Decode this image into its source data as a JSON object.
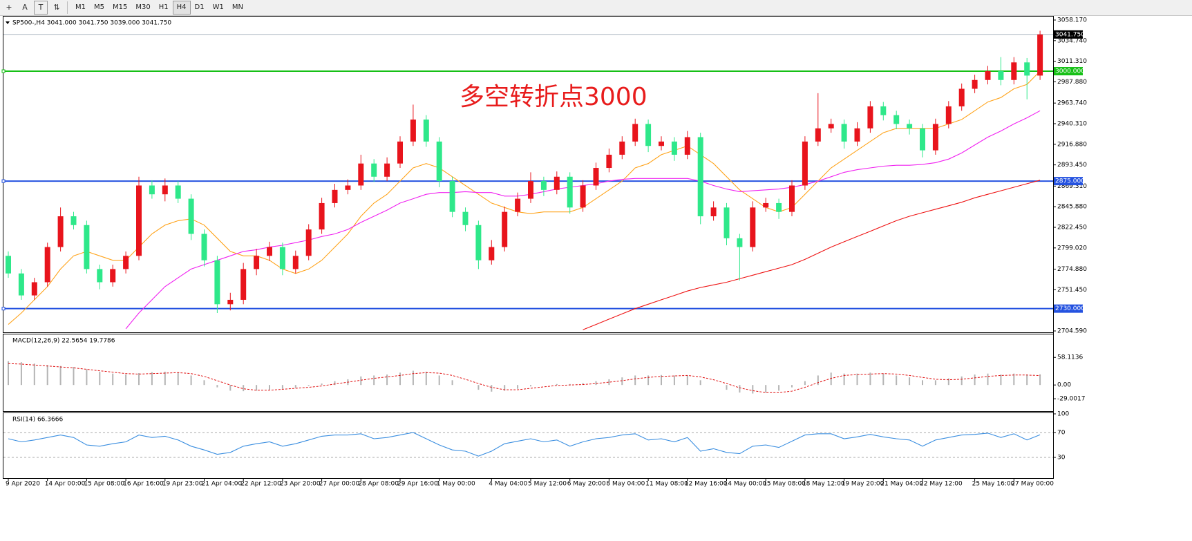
{
  "toolbar": {
    "timeframes": [
      "M1",
      "M5",
      "M15",
      "M30",
      "H1",
      "H4",
      "D1",
      "W1",
      "MN"
    ]
  },
  "chart_data": [
    {
      "type": "candlestick",
      "title": "SP500-,H4  3041.000 3041.750 3039.000 3041.750",
      "annotation": "多空转折点3000",
      "up_color": "#e8141c",
      "down_color": "#2ee88a",
      "categories": [
        "9 Apr 2020",
        null,
        null,
        "14 Apr 00:00",
        null,
        null,
        "15 Apr 08:00",
        null,
        null,
        "16 Apr 16:00",
        null,
        null,
        "19 Apr 23:00",
        null,
        null,
        "21 Apr 04:00",
        null,
        null,
        "22 Apr 12:00",
        null,
        null,
        "23 Apr 20:00",
        null,
        null,
        "27 Apr 00:00",
        null,
        null,
        "28 Apr 08:00",
        null,
        null,
        "29 Apr 16:00",
        null,
        null,
        "1 May 00:00",
        null,
        null,
        null,
        "4 May 04:00",
        null,
        null,
        "5 May 12:00",
        null,
        null,
        "6 May 20:00",
        null,
        null,
        "8 May 04:00",
        null,
        null,
        "11 May 08:00",
        null,
        null,
        "12 May 16:00",
        null,
        null,
        "14 May 00:00",
        null,
        null,
        "15 May 08:00",
        null,
        null,
        "18 May 12:00",
        null,
        null,
        "19 May 20:00",
        null,
        null,
        "21 May 04:00",
        null,
        null,
        "22 May 12:00",
        null,
        null,
        null,
        "25 May 16:00",
        null,
        null,
        "27 May 00:00",
        null,
        null
      ],
      "candles": [
        [
          2790,
          2795,
          2765,
          2770
        ],
        [
          2770,
          2775,
          2740,
          2745
        ],
        [
          2745,
          2765,
          2740,
          2760
        ],
        [
          2760,
          2805,
          2755,
          2800
        ],
        [
          2800,
          2845,
          2795,
          2835
        ],
        [
          2835,
          2840,
          2820,
          2825
        ],
        [
          2825,
          2830,
          2770,
          2775
        ],
        [
          2775,
          2780,
          2752,
          2760
        ],
        [
          2760,
          2780,
          2755,
          2775
        ],
        [
          2775,
          2795,
          2770,
          2790
        ],
        [
          2790,
          2880,
          2785,
          2870
        ],
        [
          2870,
          2876,
          2855,
          2860
        ],
        [
          2860,
          2878,
          2852,
          2870
        ],
        [
          2870,
          2875,
          2850,
          2855
        ],
        [
          2855,
          2860,
          2808,
          2815
        ],
        [
          2815,
          2820,
          2778,
          2785
        ],
        [
          2785,
          2790,
          2725,
          2735
        ],
        [
          2735,
          2748,
          2728,
          2740
        ],
        [
          2740,
          2782,
          2735,
          2775
        ],
        [
          2775,
          2798,
          2768,
          2790
        ],
        [
          2790,
          2806,
          2784,
          2800
        ],
        [
          2800,
          2805,
          2768,
          2775
        ],
        [
          2775,
          2796,
          2770,
          2790
        ],
        [
          2790,
          2826,
          2785,
          2820
        ],
        [
          2820,
          2856,
          2815,
          2850
        ],
        [
          2850,
          2872,
          2845,
          2865
        ],
        [
          2865,
          2877,
          2860,
          2870
        ],
        [
          2870,
          2905,
          2865,
          2895
        ],
        [
          2895,
          2900,
          2874,
          2880
        ],
        [
          2880,
          2902,
          2875,
          2895
        ],
        [
          2895,
          2926,
          2890,
          2920
        ],
        [
          2920,
          2962,
          2915,
          2945
        ],
        [
          2945,
          2950,
          2914,
          2920
        ],
        [
          2920,
          2925,
          2868,
          2875
        ],
        [
          2875,
          2880,
          2834,
          2840
        ],
        [
          2840,
          2845,
          2818,
          2825
        ],
        [
          2825,
          2830,
          2775,
          2785
        ],
        [
          2785,
          2808,
          2780,
          2800
        ],
        [
          2800,
          2846,
          2795,
          2840
        ],
        [
          2840,
          2862,
          2835,
          2855
        ],
        [
          2855,
          2885,
          2850,
          2875
        ],
        [
          2875,
          2880,
          2858,
          2865
        ],
        [
          2865,
          2886,
          2860,
          2880
        ],
        [
          2880,
          2885,
          2838,
          2845
        ],
        [
          2845,
          2876,
          2840,
          2870
        ],
        [
          2870,
          2896,
          2865,
          2890
        ],
        [
          2890,
          2912,
          2885,
          2905
        ],
        [
          2905,
          2926,
          2900,
          2920
        ],
        [
          2920,
          2946,
          2915,
          2940
        ],
        [
          2940,
          2945,
          2908,
          2915
        ],
        [
          2915,
          2926,
          2910,
          2920
        ],
        [
          2920,
          2925,
          2898,
          2905
        ],
        [
          2905,
          2932,
          2900,
          2925
        ],
        [
          2925,
          2930,
          2826,
          2835
        ],
        [
          2835,
          2852,
          2830,
          2845
        ],
        [
          2845,
          2850,
          2802,
          2810
        ],
        [
          2810,
          2815,
          2762,
          2800
        ],
        [
          2800,
          2852,
          2795,
          2845
        ],
        [
          2845,
          2856,
          2840,
          2850
        ],
        [
          2850,
          2855,
          2832,
          2840
        ],
        [
          2840,
          2876,
          2835,
          2870
        ],
        [
          2870,
          2926,
          2865,
          2920
        ],
        [
          2920,
          2975,
          2915,
          2935
        ],
        [
          2935,
          2946,
          2930,
          2940
        ],
        [
          2940,
          2945,
          2912,
          2920
        ],
        [
          2920,
          2942,
          2915,
          2935
        ],
        [
          2935,
          2966,
          2930,
          2960
        ],
        [
          2960,
          2965,
          2944,
          2950
        ],
        [
          2950,
          2955,
          2934,
          2940
        ],
        [
          2940,
          2945,
          2928,
          2935
        ],
        [
          2935,
          2940,
          2902,
          2910
        ],
        [
          2910,
          2946,
          2905,
          2940
        ],
        [
          2940,
          2966,
          2935,
          2960
        ],
        [
          2960,
          2986,
          2955,
          2980
        ],
        [
          2980,
          2996,
          2975,
          2990
        ],
        [
          2990,
          3006,
          2985,
          3000
        ],
        [
          3000,
          3016,
          2984,
          2990
        ],
        [
          2990,
          3016,
          2985,
          3010
        ],
        [
          3010,
          3015,
          2968,
          2995
        ],
        [
          2995,
          3046,
          2990,
          3041.75
        ]
      ],
      "series": [
        {
          "color": "#ffa31a",
          "values": [
            2712,
            2725,
            2740,
            2755,
            2775,
            2790,
            2795,
            2790,
            2785,
            2785,
            2800,
            2815,
            2825,
            2830,
            2832,
            2825,
            2810,
            2795,
            2790,
            2790,
            2785,
            2775,
            2770,
            2775,
            2785,
            2800,
            2815,
            2835,
            2850,
            2860,
            2875,
            2890,
            2895,
            2890,
            2880,
            2870,
            2860,
            2850,
            2845,
            2840,
            2838,
            2840,
            2840,
            2840,
            2845,
            2855,
            2865,
            2875,
            2890,
            2895,
            2905,
            2910,
            2915,
            2905,
            2895,
            2880,
            2865,
            2855,
            2845,
            2840,
            2845,
            2860,
            2875,
            2890,
            2900,
            2910,
            2920,
            2930,
            2935,
            2935,
            2935,
            2935,
            2940,
            2945,
            2955,
            2965,
            2970,
            2980,
            2985,
            3000
          ]
        },
        {
          "color": "#f020f0",
          "values": [
            null,
            null,
            null,
            null,
            null,
            null,
            null,
            null,
            null,
            2707,
            2725,
            2740,
            2755,
            2765,
            2775,
            2780,
            2785,
            2790,
            2795,
            2797,
            2800,
            2802,
            2805,
            2808,
            2812,
            2815,
            2820,
            2828,
            2835,
            2842,
            2850,
            2855,
            2860,
            2862,
            2862,
            2863,
            2862,
            2862,
            2858,
            2858,
            2860,
            2863,
            2866,
            2868,
            2870,
            2872,
            2875,
            2877,
            2878,
            2878,
            2878,
            2878,
            2878,
            2875,
            2870,
            2866,
            2863,
            2864,
            2865,
            2866,
            2868,
            2871,
            2875,
            2880,
            2885,
            2888,
            2890,
            2892,
            2893,
            2893,
            2894,
            2896,
            2900,
            2907,
            2916,
            2925,
            2932,
            2940,
            2947,
            2955
          ]
        },
        {
          "color": "#ee1111",
          "values": [
            null,
            null,
            null,
            null,
            null,
            null,
            null,
            null,
            null,
            null,
            null,
            null,
            null,
            null,
            null,
            null,
            null,
            null,
            null,
            null,
            null,
            null,
            null,
            null,
            null,
            null,
            null,
            null,
            null,
            null,
            null,
            null,
            null,
            null,
            null,
            null,
            null,
            null,
            null,
            null,
            null,
            null,
            null,
            null,
            2706,
            2712,
            2718,
            2724,
            2730,
            2735,
            2740,
            2745,
            2750,
            2754,
            2757,
            2760,
            2764,
            2768,
            2772,
            2776,
            2780,
            2786,
            2793,
            2800,
            2806,
            2812,
            2818,
            2824,
            2830,
            2835,
            2839,
            2843,
            2847,
            2851,
            2856,
            2860,
            2864,
            2868,
            2872,
            2876
          ]
        }
      ],
      "levels": [
        {
          "value": 3000,
          "label": "3000.000",
          "color": "#16c016"
        },
        {
          "value": 2875,
          "label": "2875.000",
          "color": "#2452e0"
        },
        {
          "value": 2730,
          "label": "2730.000",
          "color": "#2452e0"
        }
      ],
      "last_price": {
        "value": 3041.75,
        "label": "3041.750"
      },
      "ylim": [
        2704.59,
        3058.17
      ],
      "yticks": [
        {
          "value": 3058.17,
          "label": "3058.170"
        },
        {
          "value": 3034.74,
          "label": "3034.740"
        },
        {
          "value": 3011.31,
          "label": "3011.310"
        },
        {
          "value": 2987.88,
          "label": "2987.880"
        },
        {
          "value": 2963.74,
          "label": "2963.740"
        },
        {
          "value": 2940.31,
          "label": "2940.310"
        },
        {
          "value": 2916.88,
          "label": "2916.880"
        },
        {
          "value": 2893.45,
          "label": "2893.450"
        },
        {
          "value": 2869.31,
          "label": "2869.310"
        },
        {
          "value": 2845.88,
          "label": "2845.880"
        },
        {
          "value": 2822.45,
          "label": "2822.450"
        },
        {
          "value": 2799.02,
          "label": "2799.020"
        },
        {
          "value": 2774.88,
          "label": "2774.880"
        },
        {
          "value": 2751.45,
          "label": "2751.450"
        },
        {
          "value": 2704.59,
          "label": "2704.590"
        }
      ]
    },
    {
      "type": "macd",
      "title": "MACD(12,26,9) 22.5654 19.7786",
      "series": [
        {
          "color": "#b4b4b4",
          "values": [
            50,
            48,
            45,
            42,
            40,
            38,
            33,
            28,
            24,
            22,
            25,
            27,
            28,
            26,
            20,
            10,
            -5,
            -12,
            -13,
            -12,
            -10,
            -8,
            -6,
            -2,
            3,
            8,
            12,
            18,
            20,
            22,
            26,
            30,
            28,
            20,
            10,
            0,
            -10,
            -14,
            -12,
            -8,
            -3,
            0,
            2,
            2,
            4,
            8,
            12,
            16,
            20,
            20,
            21,
            20,
            20,
            10,
            0,
            -10,
            -16,
            -18,
            -16,
            -12,
            -5,
            8,
            20,
            26,
            24,
            24,
            26,
            24,
            20,
            16,
            10,
            10,
            14,
            18,
            22,
            24,
            22,
            24,
            22,
            22.5654
          ]
        },
        {
          "color": "#e01010",
          "values": [
            45,
            44,
            42,
            40,
            38,
            36,
            33,
            30,
            27,
            24,
            23,
            24,
            25,
            26,
            24,
            18,
            9,
            0,
            -8,
            -11,
            -11,
            -9,
            -7,
            -5,
            -2,
            2,
            6,
            10,
            14,
            17,
            20,
            24,
            26,
            25,
            20,
            12,
            3,
            -5,
            -10,
            -10,
            -7,
            -4,
            -1,
            0,
            1,
            3,
            6,
            9,
            13,
            16,
            18,
            19,
            20,
            17,
            11,
            3,
            -6,
            -12,
            -16,
            -16,
            -13,
            -5,
            5,
            14,
            20,
            22,
            23,
            24,
            23,
            20,
            16,
            12,
            11,
            12,
            15,
            18,
            20,
            21,
            21,
            19.7786
          ]
        }
      ],
      "ylim": [
        -55,
        105
      ],
      "yticks": [
        58.1136,
        {
          "value": 0,
          "label": "0.00"
        },
        -29.0017
      ]
    },
    {
      "type": "line",
      "title": "RSI(14) 66.3666",
      "color": "#3a8ee0",
      "values": [
        60,
        55,
        58,
        62,
        66,
        62,
        50,
        48,
        52,
        55,
        66,
        62,
        64,
        58,
        48,
        42,
        35,
        38,
        48,
        52,
        55,
        48,
        52,
        58,
        64,
        66,
        66,
        68,
        60,
        62,
        66,
        70,
        60,
        50,
        42,
        40,
        32,
        40,
        52,
        56,
        60,
        55,
        58,
        48,
        55,
        60,
        62,
        66,
        68,
        58,
        60,
        55,
        62,
        40,
        44,
        38,
        36,
        48,
        50,
        46,
        56,
        66,
        68,
        68,
        60,
        63,
        67,
        63,
        60,
        58,
        48,
        58,
        62,
        66,
        67,
        69,
        62,
        68,
        58,
        66.3666
      ],
      "ylim": [
        0,
        100
      ],
      "yticks": [
        100,
        70,
        30
      ],
      "grid": true
    }
  ]
}
